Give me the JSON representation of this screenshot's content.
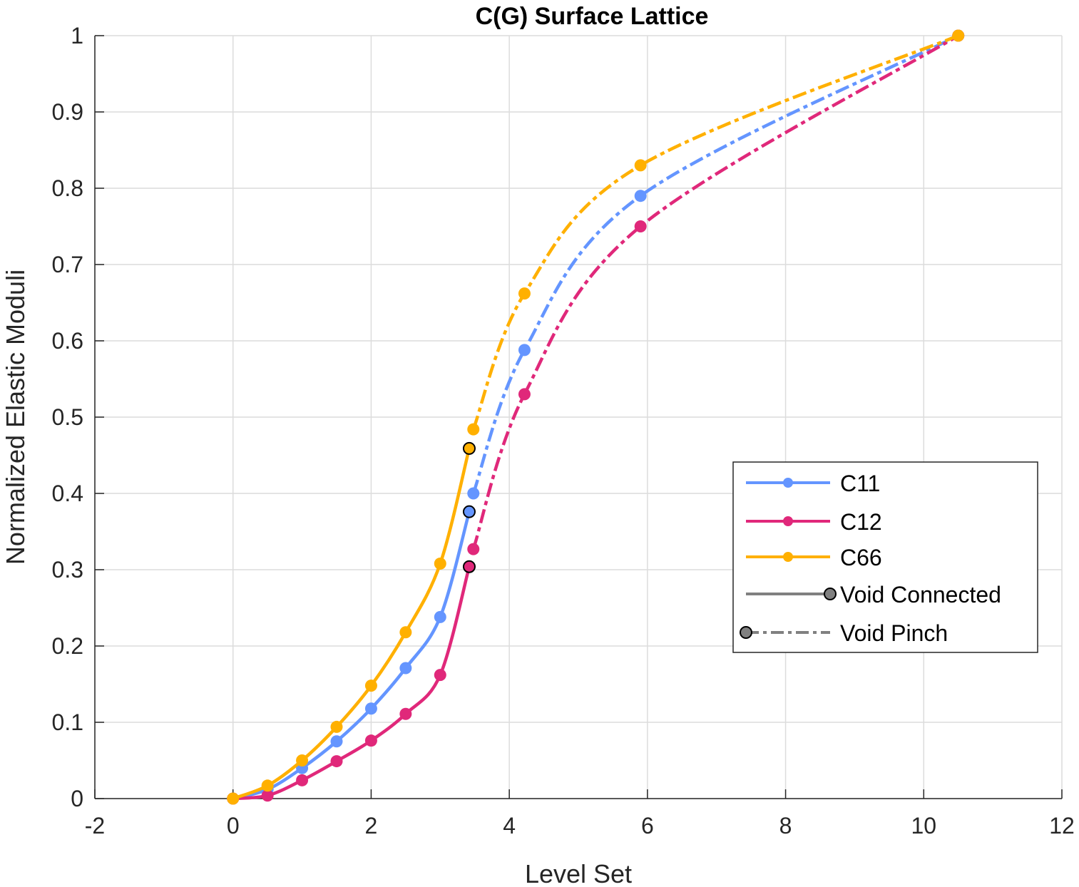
{
  "chart_data": {
    "type": "line",
    "title": "C(G) Surface Lattice",
    "xlabel": "Level Set",
    "ylabel": "Normalized Elastic Moduli",
    "xlim": [
      -2,
      12
    ],
    "ylim": [
      0,
      1
    ],
    "xticks": [
      -2,
      0,
      2,
      4,
      6,
      8,
      10,
      12
    ],
    "yticks": [
      0,
      0.1,
      0.2,
      0.3,
      0.4,
      0.5,
      0.6,
      0.7,
      0.8,
      0.9,
      1
    ],
    "grid": true,
    "legend_position": "right",
    "series": [
      {
        "name": "C11",
        "color": "#6495ff",
        "connected": {
          "x": [
            0,
            0.5,
            1,
            1.5,
            2,
            2.5,
            3,
            3.42
          ],
          "y": [
            0,
            0.012,
            0.04,
            0.075,
            0.118,
            0.171,
            0.238,
            0.376
          ]
        },
        "pinch": {
          "x": [
            3.48,
            4.22,
            5.9,
            10.5
          ],
          "y": [
            0.4,
            0.588,
            0.79,
            1.0
          ]
        }
      },
      {
        "name": "C12",
        "color": "#e0287a",
        "connected": {
          "x": [
            0,
            0.5,
            1,
            1.5,
            2,
            2.5,
            3,
            3.42
          ],
          "y": [
            0,
            0.004,
            0.024,
            0.049,
            0.076,
            0.111,
            0.162,
            0.304
          ]
        },
        "pinch": {
          "x": [
            3.48,
            4.22,
            5.9,
            10.5
          ],
          "y": [
            0.327,
            0.53,
            0.75,
            1.0
          ]
        }
      },
      {
        "name": "C66",
        "color": "#ffb000",
        "connected": {
          "x": [
            0,
            0.5,
            1,
            1.5,
            2,
            2.5,
            3,
            3.42
          ],
          "y": [
            0,
            0.017,
            0.05,
            0.094,
            0.148,
            0.218,
            0.308,
            0.459
          ]
        },
        "pinch": {
          "x": [
            3.48,
            4.22,
            5.9,
            10.5
          ],
          "y": [
            0.484,
            0.662,
            0.83,
            1.0
          ]
        }
      }
    ],
    "legend": [
      "C11",
      "C12",
      "C66",
      "Void Connected",
      "Void Pinch"
    ]
  }
}
